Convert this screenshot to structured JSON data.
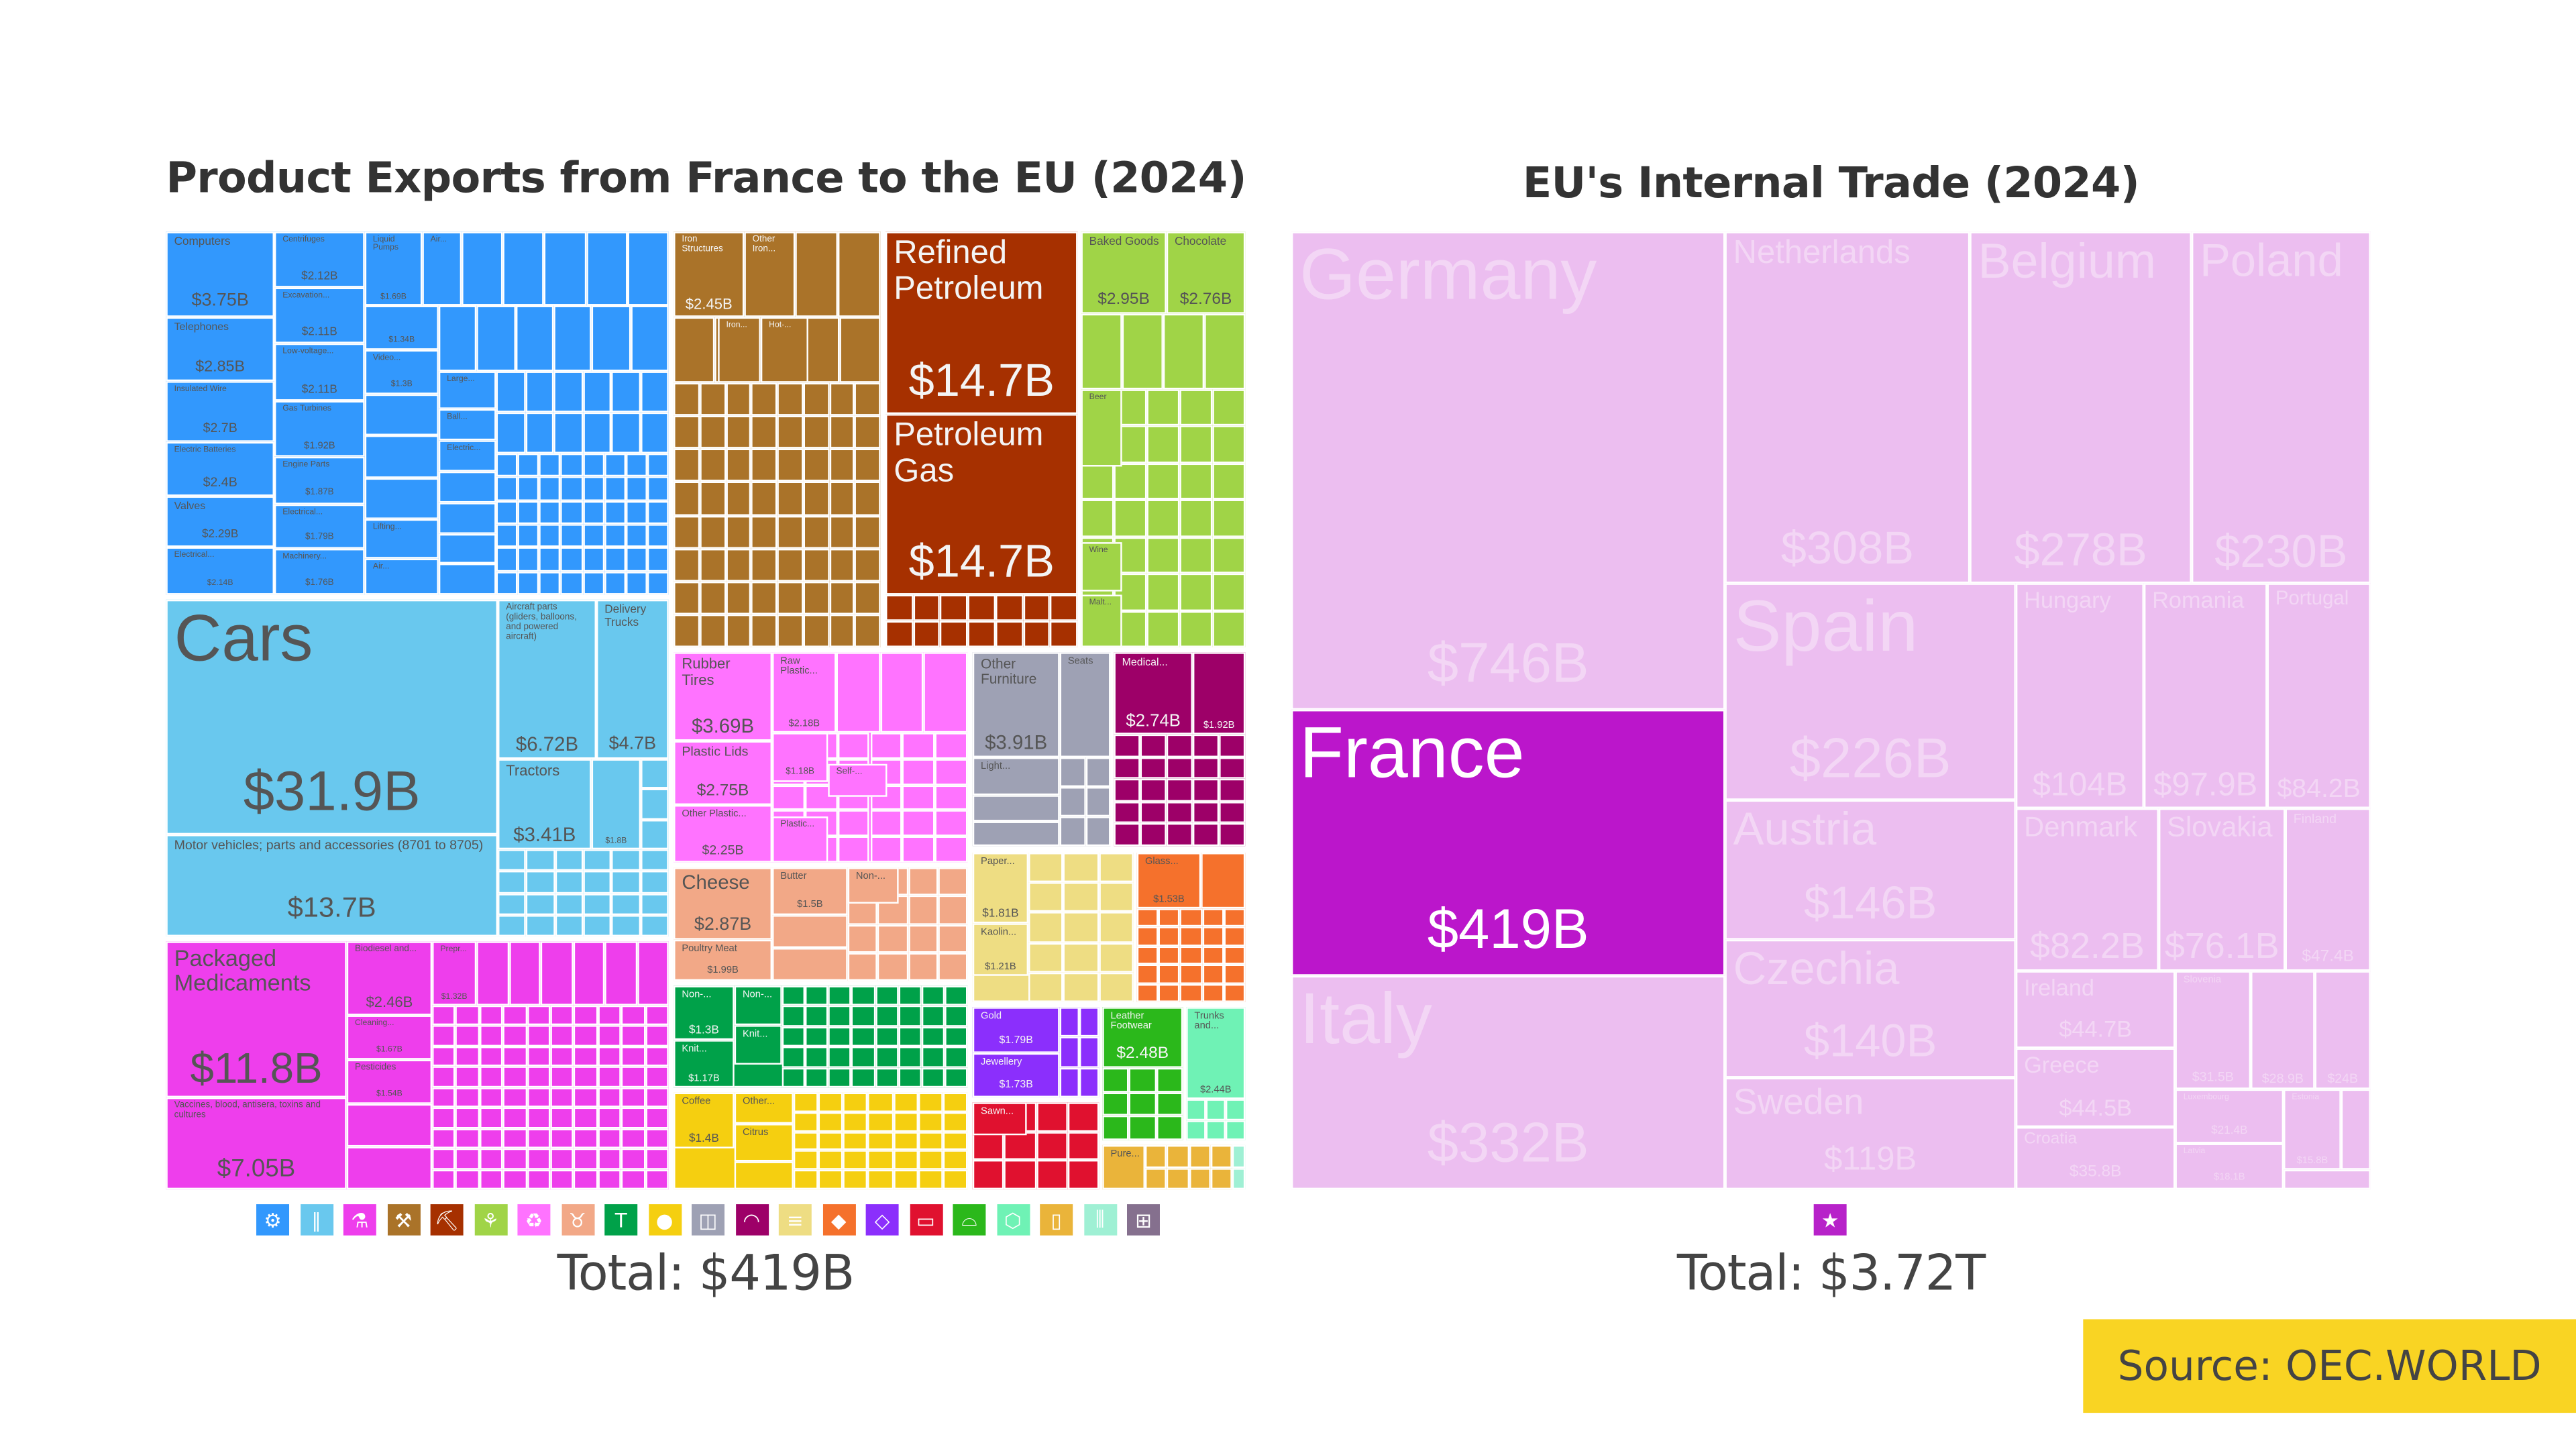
{
  "left": {
    "title": "Product Exports from France to the EU (2024)",
    "total": "Total: $419B",
    "icons": [
      {
        "name": "gear-icon",
        "glyph": "⚙",
        "color": "#3298fd"
      },
      {
        "name": "road-icon",
        "glyph": "∥",
        "color": "#69c8ee"
      },
      {
        "name": "flask-icon",
        "glyph": "⚗",
        "color": "#ee3eec"
      },
      {
        "name": "anvil-icon",
        "glyph": "⚒",
        "color": "#aa7329"
      },
      {
        "name": "pickaxe-icon",
        "glyph": "⛏",
        "color": "#a63000"
      },
      {
        "name": "wheat-icon",
        "glyph": "⚘",
        "color": "#a0d447"
      },
      {
        "name": "recycle-icon",
        "glyph": "♻",
        "color": "#ff73ff"
      },
      {
        "name": "cow-icon",
        "glyph": "♉",
        "color": "#f2a887"
      },
      {
        "name": "shirt-icon",
        "glyph": "T",
        "color": "#00a149"
      },
      {
        "name": "tomato-icon",
        "glyph": "●",
        "color": "#f5cf10"
      },
      {
        "name": "box-icon",
        "glyph": "◫",
        "color": "#9ea1b4"
      },
      {
        "name": "gauge-icon",
        "glyph": "◠",
        "color": "#9d0068"
      },
      {
        "name": "scroll-icon",
        "glyph": "≡",
        "color": "#eedd83"
      },
      {
        "name": "stone-icon",
        "glyph": "◆",
        "color": "#f5712c"
      },
      {
        "name": "diamond-icon",
        "glyph": "◇",
        "color": "#8b2ffc"
      },
      {
        "name": "log-icon",
        "glyph": "▭",
        "color": "#e0112f"
      },
      {
        "name": "shoe-icon",
        "glyph": "⌓",
        "color": "#2bb81b"
      },
      {
        "name": "leather-icon",
        "glyph": "⬡",
        "color": "#6ff2b5"
      },
      {
        "name": "bottle-icon",
        "glyph": "▯",
        "color": "#eab43a"
      },
      {
        "name": "ammunition-icon",
        "glyph": "⫼",
        "color": "#9ff0d4"
      },
      {
        "name": "easel-icon",
        "glyph": "⊞",
        "color": "#85708e"
      }
    ],
    "cells": [
      {
        "label": "Computers",
        "value": "$3.75B"
      },
      {
        "label": "Telephones",
        "value": "$2.85B"
      },
      {
        "label": "Insulated Wire",
        "value": "$2.7B"
      },
      {
        "label": "Electric Batteries",
        "value": "$2.4B"
      },
      {
        "label": "Valves",
        "value": "$2.29B"
      },
      {
        "label": "Electrical...",
        "value": "$2.14B"
      },
      {
        "label": "Centrifuges",
        "value": "$2.12B"
      },
      {
        "label": "Excavation...",
        "value": "$2.11B"
      },
      {
        "label": "Low-voltage...",
        "value": "$2.11B"
      },
      {
        "label": "Gas Turbines",
        "value": "$1.92B"
      },
      {
        "label": "Engine Parts",
        "value": "$1.87B"
      },
      {
        "label": "Electrical...",
        "value": "$1.79B"
      },
      {
        "label": "Machinery...",
        "value": "$1.76B"
      },
      {
        "label": "Liquid Pumps",
        "value": "$1.69B"
      },
      {
        "label": "",
        "value": "$1.34B"
      },
      {
        "label": "Video...",
        "value": "$1.3B"
      },
      {
        "label": "Lifting...",
        "value": ""
      },
      {
        "label": "Air...",
        "value": ""
      },
      {
        "label": "Air...",
        "value": ""
      },
      {
        "label": "Large...",
        "value": ""
      },
      {
        "label": "Ball...",
        "value": ""
      },
      {
        "label": "Electric...",
        "value": ""
      },
      {
        "label": "Cars",
        "value": "$31.9B"
      },
      {
        "label": "Motor vehicles; parts and accessories (8701 to 8705)",
        "value": "$13.7B"
      },
      {
        "label": "Aircraft parts (gliders, balloons, and powered aircraft)",
        "value": "$6.72B"
      },
      {
        "label": "Delivery Trucks",
        "value": "$4.7B"
      },
      {
        "label": "Tractors",
        "value": "$3.41B"
      },
      {
        "label": "",
        "value": "$1.8B"
      },
      {
        "label": "Packaged Medicaments",
        "value": "$11.8B"
      },
      {
        "label": "Vaccines, blood, antisera, toxins and cultures",
        "value": "$7.05B"
      },
      {
        "label": "Biodiesel and...",
        "value": "$2.46B"
      },
      {
        "label": "Cleaning...",
        "value": "$1.67B"
      },
      {
        "label": "Pesticides",
        "value": "$1.54B"
      },
      {
        "label": "Prepr...",
        "value": "$1.32B"
      },
      {
        "label": "Iron Structures",
        "value": "$2.45B"
      },
      {
        "label": "Other Iron...",
        "value": ""
      },
      {
        "label": "Iron...",
        "value": ""
      },
      {
        "label": "Hot-...",
        "value": ""
      },
      {
        "label": "Refined Petroleum",
        "value": "$14.7B"
      },
      {
        "label": "Petroleum Gas",
        "value": "$14.7B"
      },
      {
        "label": "Baked Goods",
        "value": "$2.95B"
      },
      {
        "label": "Chocolate",
        "value": "$2.76B"
      },
      {
        "label": "Beer",
        "value": ""
      },
      {
        "label": "Wine",
        "value": ""
      },
      {
        "label": "Malt...",
        "value": ""
      },
      {
        "label": "Rubber Tires",
        "value": "$3.69B"
      },
      {
        "label": "Plastic Lids",
        "value": "$2.75B"
      },
      {
        "label": "Other Plastic...",
        "value": "$2.25B"
      },
      {
        "label": "Raw Plastic...",
        "value": "$2.18B"
      },
      {
        "label": "",
        "value": "$1.18B"
      },
      {
        "label": "Self-...",
        "value": ""
      },
      {
        "label": "Plastic...",
        "value": ""
      },
      {
        "label": "Other Furniture",
        "value": "$3.91B"
      },
      {
        "label": "Seats",
        "value": ""
      },
      {
        "label": "Light...",
        "value": ""
      },
      {
        "label": "Medical...",
        "value": "$2.74B"
      },
      {
        "label": "",
        "value": "$1.92B"
      },
      {
        "label": "Cheese",
        "value": "$2.87B"
      },
      {
        "label": "Poultry Meat",
        "value": "$1.99B"
      },
      {
        "label": "Butter",
        "value": "$1.5B"
      },
      {
        "label": "Non-...",
        "value": ""
      },
      {
        "label": "Paper...",
        "value": "$1.81B"
      },
      {
        "label": "Kaolin...",
        "value": "$1.21B"
      },
      {
        "label": "Glass...",
        "value": "$1.53B"
      },
      {
        "label": "Non-...",
        "value": "$1.3B"
      },
      {
        "label": "Knit...",
        "value": "$1.17B"
      },
      {
        "label": "Non-...",
        "value": ""
      },
      {
        "label": "Knit...",
        "value": ""
      },
      {
        "label": "Coffee",
        "value": "$1.4B"
      },
      {
        "label": "Other...",
        "value": ""
      },
      {
        "label": "Citrus",
        "value": ""
      },
      {
        "label": "Gold",
        "value": "$1.79B"
      },
      {
        "label": "Jewellery",
        "value": "$1.73B"
      },
      {
        "label": "Sawn...",
        "value": ""
      },
      {
        "label": "Leather Footwear",
        "value": "$2.48B"
      },
      {
        "label": "Trunks and...",
        "value": "$2.44B"
      },
      {
        "label": "Pure...",
        "value": ""
      }
    ]
  },
  "right": {
    "title": "EU's Internal Trade (2024)",
    "total": "Total: $3.72T",
    "icon": {
      "name": "eu-map-icon",
      "glyph": "★",
      "color": "#b722c9"
    },
    "colors": {
      "other": "#ecbef0",
      "highlight": "#bb16cb",
      "other_text": "#f3d6f5",
      "highlight_text": "#ffffff"
    },
    "cells": [
      {
        "label": "Germany",
        "value": "$746B"
      },
      {
        "label": "France",
        "value": "$419B",
        "highlight": true
      },
      {
        "label": "Italy",
        "value": "$332B"
      },
      {
        "label": "Netherlands",
        "value": "$308B"
      },
      {
        "label": "Belgium",
        "value": "$278B"
      },
      {
        "label": "Poland",
        "value": "$230B"
      },
      {
        "label": "Spain",
        "value": "$226B"
      },
      {
        "label": "Austria",
        "value": "$146B"
      },
      {
        "label": "Czechia",
        "value": "$140B"
      },
      {
        "label": "Sweden",
        "value": "$119B"
      },
      {
        "label": "Hungary",
        "value": "$104B"
      },
      {
        "label": "Romania",
        "value": "$97.9B"
      },
      {
        "label": "Portugal",
        "value": "$84.2B"
      },
      {
        "label": "Denmark",
        "value": "$82.2B"
      },
      {
        "label": "Slovakia",
        "value": "$76.1B"
      },
      {
        "label": "Finland",
        "value": "$47.4B"
      },
      {
        "label": "Ireland",
        "value": "$44.7B"
      },
      {
        "label": "Greece",
        "value": "$44.5B"
      },
      {
        "label": "Croatia",
        "value": "$35.8B"
      },
      {
        "label": "Slovenia",
        "value": "$31.5B"
      },
      {
        "label": "",
        "value": "$28.9B"
      },
      {
        "label": "",
        "value": "$24B"
      },
      {
        "label": "Luxembourg",
        "value": "$21.4B"
      },
      {
        "label": "Latvia",
        "value": "$18.1B"
      },
      {
        "label": "Estonia",
        "value": "$15.8B"
      }
    ]
  },
  "source": "Source: OEC.WORLD"
}
